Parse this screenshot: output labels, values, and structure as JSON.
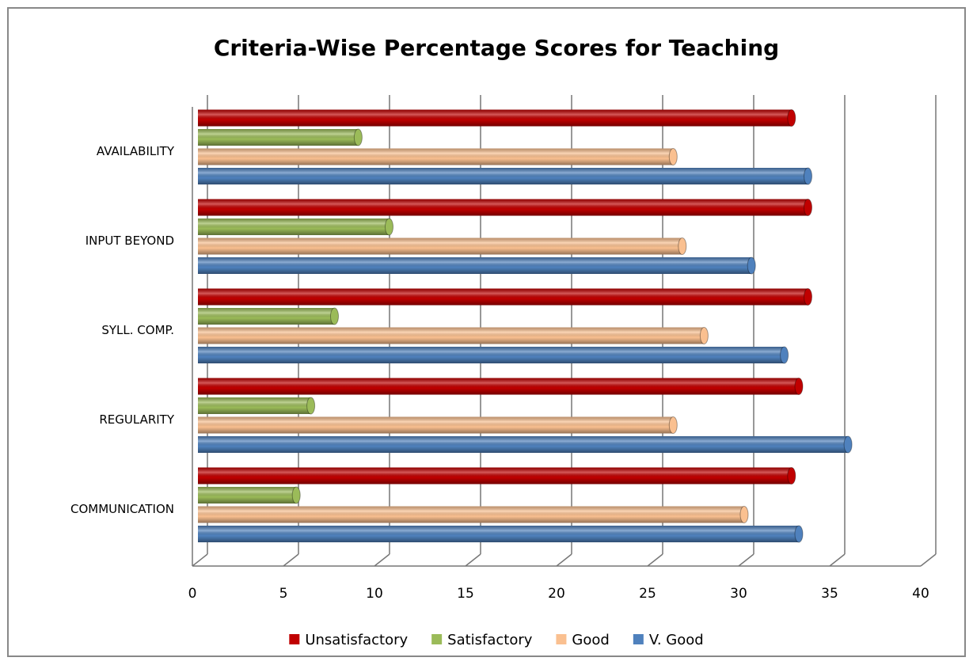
{
  "chart_data": {
    "type": "bar",
    "orientation": "horizontal",
    "title": "Criteria-Wise Percentage Scores for Teaching",
    "categories": [
      "COMMUNICATION",
      "REGULARITY",
      "SYLL. COMP.",
      "INPUT BEYOND",
      "AVAILABILITY"
    ],
    "series": [
      {
        "name": "Unsatisfactory",
        "color": "#c00000",
        "values": [
          32.6,
          33,
          33.5,
          33.5,
          32.6
        ]
      },
      {
        "name": "Satisfactory",
        "color": "#9bbb59",
        "values": [
          5.4,
          6.2,
          7.5,
          10.5,
          8.8
        ]
      },
      {
        "name": "Good",
        "color": "#fac090",
        "values": [
          30,
          26.1,
          27.8,
          26.6,
          26.1
        ]
      },
      {
        "name": "V. Good",
        "color": "#4f81bd",
        "values": [
          33,
          35.7,
          32.2,
          30.4,
          33.5
        ]
      }
    ],
    "xlim": [
      0,
      40
    ],
    "xticks": [
      0,
      5,
      10,
      15,
      20,
      25,
      30,
      35,
      40
    ],
    "grid": true,
    "legend": "bottom"
  }
}
